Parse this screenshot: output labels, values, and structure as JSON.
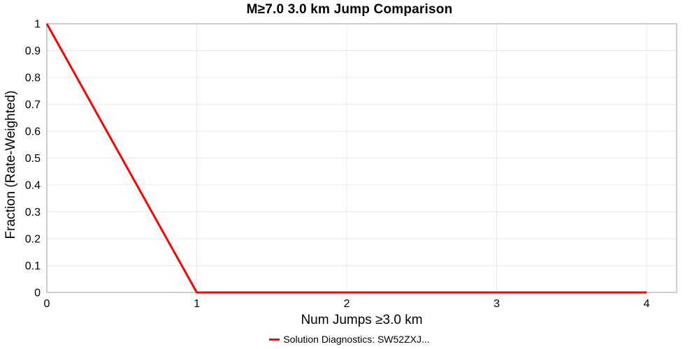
{
  "chart_data": {
    "type": "line",
    "title": "M≥7.0 3.0 km Jump Comparison",
    "xlabel": "Num Jumps ≥3.0 km",
    "ylabel": "Fraction (Rate-Weighted)",
    "xlim": [
      0,
      4.2
    ],
    "ylim": [
      0,
      1
    ],
    "xticks": [
      0,
      1,
      2,
      3,
      4
    ],
    "yticks": [
      0,
      0.1,
      0.2,
      0.3,
      0.4,
      0.5,
      0.6,
      0.7,
      0.8,
      0.9,
      1
    ],
    "grid": true,
    "legend_position": "bottom",
    "series": [
      {
        "name": "Solution Diagnostics: SW52ZXJ...",
        "color": "#ff0000",
        "x": [
          0,
          1,
          2,
          3,
          4
        ],
        "y": [
          1,
          0,
          0,
          0,
          0
        ]
      }
    ]
  },
  "colors": {
    "series_red": "#ff0000",
    "frame": "#9c9c9c",
    "grid": "#e9e9e9",
    "text": "#000000",
    "background": "#ffffff"
  },
  "legend": {
    "entries": [
      {
        "label": "Solution Diagnostics: SW52ZXJ...",
        "color": "#ff0000"
      }
    ]
  }
}
